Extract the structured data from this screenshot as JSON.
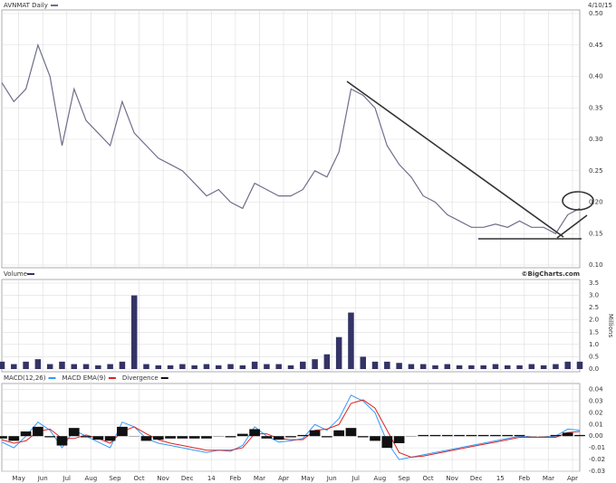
{
  "chart_data": [
    {
      "type": "line",
      "title": "AVNMAT Daily",
      "subtitle": "4/10/15",
      "x": [
        0,
        0.5,
        1,
        1.5,
        2,
        2.5,
        3,
        3.5,
        4,
        4.5,
        5,
        5.5,
        6,
        6.5,
        7,
        7.5,
        8,
        8.5,
        9,
        9.5,
        10,
        10.5,
        11,
        11.5,
        12,
        12.5,
        13,
        13.5,
        14,
        14.5,
        15,
        15.5,
        16,
        16.5,
        17,
        17.5,
        18,
        18.5,
        19,
        19.5,
        20,
        20.5,
        21,
        21.5,
        22,
        22.5,
        23,
        23.5,
        24
      ],
      "series": [
        {
          "name": "AVNMAT Daily",
          "color": "#6e6e8c",
          "values": [
            0.39,
            0.36,
            0.38,
            0.45,
            0.4,
            0.29,
            0.38,
            0.33,
            0.31,
            0.29,
            0.36,
            0.31,
            0.29,
            0.27,
            0.26,
            0.25,
            0.23,
            0.21,
            0.22,
            0.2,
            0.19,
            0.23,
            0.22,
            0.21,
            0.21,
            0.22,
            0.25,
            0.24,
            0.28,
            0.38,
            0.37,
            0.35,
            0.29,
            0.26,
            0.24,
            0.21,
            0.2,
            0.18,
            0.17,
            0.16,
            0.16,
            0.165,
            0.16,
            0.17,
            0.16,
            0.16,
            0.15,
            0.18,
            0.19
          ]
        }
      ],
      "xlim": [
        0,
        24
      ],
      "ylim": [
        0.1,
        0.5
      ],
      "yticks": [
        {
          "value": 0.1,
          "label": "0.10"
        },
        0.15,
        {
          "value": 0.2,
          "label": "0.20"
        },
        0.25,
        {
          "value": 0.3,
          "label": "0.30"
        },
        0.35,
        {
          "value": 0.4,
          "label": "0.40"
        },
        0.45,
        {
          "value": 0.5,
          "label": "0.50"
        }
      ],
      "grid": true
    },
    {
      "type": "bar",
      "title": "Volume",
      "subtitle": "©BigCharts.com",
      "ylabel": "Millions",
      "x": [
        0,
        0.5,
        1,
        1.5,
        2,
        2.5,
        3,
        3.5,
        4,
        4.5,
        5,
        5.5,
        6,
        6.5,
        7,
        7.5,
        8,
        8.5,
        9,
        9.5,
        10,
        10.5,
        11,
        11.5,
        12,
        12.5,
        13,
        13.5,
        14,
        14.5,
        15,
        15.5,
        16,
        16.5,
        17,
        17.5,
        18,
        18.5,
        19,
        19.5,
        20,
        20.5,
        21,
        21.5,
        22,
        22.5,
        23,
        23.5,
        24
      ],
      "series": [
        {
          "name": "Volume",
          "color": "#333366",
          "values": [
            0.3,
            0.2,
            0.3,
            0.4,
            0.2,
            0.3,
            0.2,
            0.2,
            0.15,
            0.2,
            0.3,
            3.0,
            0.2,
            0.15,
            0.15,
            0.2,
            0.15,
            0.2,
            0.15,
            0.2,
            0.15,
            0.3,
            0.2,
            0.2,
            0.15,
            0.3,
            0.4,
            0.6,
            1.3,
            2.3,
            0.5,
            0.3,
            0.3,
            0.25,
            0.2,
            0.2,
            0.15,
            0.2,
            0.15,
            0.15,
            0.15,
            0.2,
            0.15,
            0.15,
            0.2,
            0.15,
            0.2,
            0.3,
            0.3
          ]
        }
      ],
      "xlim": [
        0,
        24
      ],
      "ylim": [
        0,
        3.5
      ],
      "yticks": [
        {
          "value": 0,
          "label": "0.0"
        },
        0.5,
        {
          "value": 1,
          "label": "1.0"
        },
        1.5,
        {
          "value": 2,
          "label": "2.0"
        },
        2.5,
        {
          "value": 3,
          "label": "3.0"
        },
        3.5
      ],
      "grid": true
    },
    {
      "type": "line",
      "x": [
        0,
        0.5,
        1,
        1.5,
        2,
        2.5,
        3,
        3.5,
        4,
        4.5,
        5,
        5.5,
        6,
        6.5,
        7,
        7.5,
        8,
        8.5,
        9,
        9.5,
        10,
        10.5,
        11,
        11.5,
        12,
        12.5,
        13,
        13.5,
        14,
        14.5,
        15,
        15.5,
        16,
        16.5,
        17,
        17.5,
        18,
        18.5,
        19,
        19.5,
        20,
        20.5,
        21,
        21.5,
        22,
        22.5,
        23,
        23.5,
        24
      ],
      "series": [
        {
          "name": "MACD(12,26)",
          "color": "#3399ff",
          "values": [
            -0.005,
            -0.01,
            0.0,
            0.012,
            0.005,
            -0.01,
            0.005,
            0.0,
            -0.005,
            -0.01,
            0.012,
            0.008,
            -0.002,
            -0.006,
            -0.008,
            -0.01,
            -0.012,
            -0.014,
            -0.012,
            -0.013,
            -0.008,
            0.008,
            0.0,
            -0.005,
            -0.004,
            -0.002,
            0.01,
            0.005,
            0.015,
            0.035,
            0.03,
            0.02,
            -0.005,
            -0.02,
            -0.018,
            -0.016,
            -0.014,
            -0.012,
            -0.01,
            -0.008,
            -0.006,
            -0.004,
            -0.002,
            0.0,
            -0.001,
            -0.001,
            0.0,
            0.006,
            0.005
          ]
        },
        {
          "name": "MACD EMA(9)",
          "color": "#dd2222",
          "values": [
            -0.003,
            -0.006,
            -0.004,
            0.004,
            0.006,
            -0.002,
            -0.002,
            0.001,
            -0.002,
            -0.006,
            0.004,
            0.008,
            0.002,
            -0.003,
            -0.006,
            -0.008,
            -0.01,
            -0.012,
            -0.012,
            -0.012,
            -0.01,
            0.002,
            0.002,
            -0.002,
            -0.003,
            -0.003,
            0.005,
            0.006,
            0.01,
            0.028,
            0.031,
            0.024,
            0.005,
            -0.014,
            -0.018,
            -0.017,
            -0.015,
            -0.013,
            -0.011,
            -0.009,
            -0.007,
            -0.005,
            -0.003,
            -0.001,
            -0.001,
            -0.001,
            -0.001,
            0.003,
            0.004
          ]
        },
        {
          "name": "Divergence",
          "color": "#111111",
          "style": "bar",
          "values": [
            -0.002,
            -0.004,
            0.004,
            0.008,
            -0.001,
            -0.008,
            0.007,
            -0.001,
            -0.003,
            -0.004,
            0.008,
            0.0,
            -0.004,
            -0.003,
            -0.002,
            -0.002,
            -0.002,
            -0.002,
            0.0,
            -0.001,
            0.002,
            0.006,
            -0.002,
            -0.003,
            -0.001,
            0.001,
            0.005,
            -0.001,
            0.005,
            0.007,
            -0.001,
            -0.004,
            -0.01,
            -0.006,
            0.0,
            0.001,
            0.001,
            0.001,
            0.001,
            0.001,
            0.001,
            0.001,
            0.001,
            0.001,
            0.0,
            0.0,
            0.001,
            0.003,
            0.001
          ]
        }
      ],
      "xlim": [
        0,
        24
      ],
      "xticks": [
        {
          "value": 0.7,
          "label": "May"
        },
        {
          "value": 1.7,
          "label": "Jun"
        },
        {
          "value": 2.7,
          "label": "Jul"
        },
        {
          "value": 3.7,
          "label": "Aug"
        },
        {
          "value": 4.7,
          "label": "Sep"
        },
        {
          "value": 5.7,
          "label": "Oct"
        },
        {
          "value": 6.7,
          "label": "Nov"
        },
        {
          "value": 7.7,
          "label": "Dec"
        },
        {
          "value": 8.7,
          "label": "14"
        },
        {
          "value": 9.7,
          "label": "Feb"
        },
        {
          "value": 10.7,
          "label": "Mar"
        },
        {
          "value": 11.7,
          "label": "Apr"
        },
        {
          "value": 12.7,
          "label": "May"
        },
        {
          "value": 13.7,
          "label": "Jun"
        },
        {
          "value": 14.7,
          "label": "Jul"
        },
        {
          "value": 15.7,
          "label": "Aug"
        },
        {
          "value": 16.7,
          "label": "Sep"
        },
        {
          "value": 17.7,
          "label": "Oct"
        },
        {
          "value": 18.7,
          "label": "Nov"
        },
        {
          "value": 19.7,
          "label": "Dec"
        },
        {
          "value": 20.7,
          "label": "15"
        },
        {
          "value": 21.7,
          "label": "Feb"
        },
        {
          "value": 22.7,
          "label": "Mar"
        },
        {
          "value": 23.7,
          "label": "Apr"
        }
      ],
      "ylim": [
        -0.03,
        0.045
      ],
      "yticks": [
        -0.03,
        -0.02,
        -0.01,
        {
          "value": 0,
          "label": "0.00"
        },
        0.01,
        0.02,
        0.03,
        0.04
      ],
      "grid": true
    }
  ]
}
